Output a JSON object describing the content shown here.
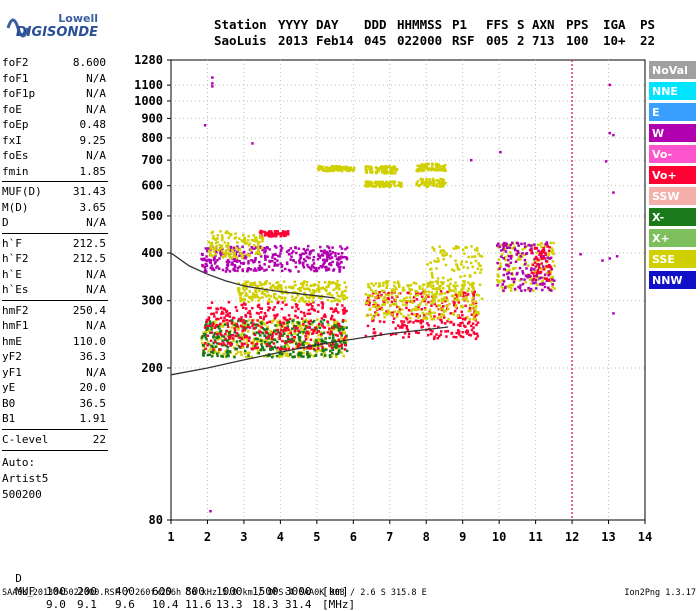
{
  "logo": {
    "line1": "Lowell",
    "line2": "DIGISONDE"
  },
  "header": {
    "row1": [
      "Station",
      "YYYY",
      "DAY",
      "DDD",
      "HHMMSS",
      "P1",
      "FFS",
      "S",
      "AXN",
      "PPS",
      "IGA",
      "PS"
    ],
    "row2": [
      "SaoLuis",
      "2013",
      "Feb14",
      "045",
      "022000",
      "RSF",
      "005",
      "2",
      "713",
      "100",
      "10+",
      "22"
    ]
  },
  "params": [
    {
      "k": "foF2",
      "v": "8.600"
    },
    {
      "k": "foF1",
      "v": "N/A"
    },
    {
      "k": "foF1p",
      "v": "N/A"
    },
    {
      "k": "foE",
      "v": "N/A"
    },
    {
      "k": "foEp",
      "v": "0.48"
    },
    {
      "k": "fxI",
      "v": "9.25"
    },
    {
      "k": "foEs",
      "v": "N/A"
    },
    {
      "k": "fmin",
      "v": "1.85"
    },
    {
      "k": "MUF(D)",
      "v": "31.43"
    },
    {
      "k": "M(D)",
      "v": "3.65"
    },
    {
      "k": "D",
      "v": "N/A"
    },
    {
      "k": "h`F",
      "v": "212.5"
    },
    {
      "k": "h`F2",
      "v": "212.5"
    },
    {
      "k": "h`E",
      "v": "N/A"
    },
    {
      "k": "h`Es",
      "v": "N/A"
    },
    {
      "k": "hmF2",
      "v": "250.4"
    },
    {
      "k": "hmF1",
      "v": "N/A"
    },
    {
      "k": "hmE",
      "v": "110.0"
    },
    {
      "k": "yF2",
      "v": "36.3"
    },
    {
      "k": "yF1",
      "v": "N/A"
    },
    {
      "k": "yE",
      "v": "20.0"
    },
    {
      "k": "B0",
      "v": "36.5"
    },
    {
      "k": "B1",
      "v": "1.91"
    },
    {
      "k": "C-level",
      "v": "22"
    }
  ],
  "auto": [
    "Auto:",
    "Artist5",
    "500200"
  ],
  "legend": [
    {
      "label": "NoVal",
      "color": "#a0a0a0"
    },
    {
      "label": "NNE",
      "color": "#00e5ff"
    },
    {
      "label": "E",
      "color": "#3aa0ff"
    },
    {
      "label": "W",
      "color": "#b000b0"
    },
    {
      "label": "Vo-",
      "color": "#ff55cc"
    },
    {
      "label": "Vo+",
      "color": "#ff0033"
    },
    {
      "label": "SSW",
      "color": "#f4b0a8"
    },
    {
      "label": "X-",
      "color": "#1a7a1a"
    },
    {
      "label": "X+",
      "color": "#7cbf5c"
    },
    {
      "label": "SSE",
      "color": "#d0d000"
    },
    {
      "label": "NNW",
      "color": "#1010c8"
    }
  ],
  "chart_data": {
    "type": "scatter",
    "xlim": [
      1,
      14
    ],
    "ylim": [
      80,
      1280
    ],
    "y_scale": "log",
    "xticks": [
      1,
      2,
      3,
      4,
      5,
      6,
      7,
      8,
      9,
      10,
      11,
      12,
      13,
      14
    ],
    "yticks": [
      80,
      200,
      300,
      400,
      500,
      600,
      700,
      800,
      900,
      1000,
      1100,
      1280
    ],
    "marker_line_x": 12,
    "ionogram_trace": [
      [
        1,
        192
      ],
      [
        2,
        200
      ],
      [
        3,
        210
      ],
      [
        4,
        220
      ],
      [
        5,
        230
      ],
      [
        6,
        238
      ],
      [
        7,
        246
      ],
      [
        8,
        252
      ],
      [
        8.6,
        256
      ]
    ],
    "secondary_trace": [
      [
        1,
        400
      ],
      [
        1.5,
        370
      ],
      [
        2,
        352
      ],
      [
        2.5,
        338
      ],
      [
        3,
        328
      ],
      [
        3.5,
        322
      ],
      [
        4,
        317
      ],
      [
        4.5,
        313
      ],
      [
        5,
        309
      ],
      [
        5.5,
        305
      ]
    ],
    "clusters": [
      {
        "x": [
          1.8,
          5.8
        ],
        "y": [
          215,
          270
        ],
        "color": "#d0d000"
      },
      {
        "x": [
          1.8,
          5.8
        ],
        "y": [
          215,
          270
        ],
        "color": "#1a7a1a"
      },
      {
        "x": [
          1.9,
          5.8
        ],
        "y": [
          225,
          300
        ],
        "color": "#ff0033"
      },
      {
        "x": [
          6.3,
          9.4
        ],
        "y": [
          240,
          320
        ],
        "color": "#ff0033"
      },
      {
        "x": [
          6.3,
          9.4
        ],
        "y": [
          270,
          340
        ],
        "color": "#d0d000"
      },
      {
        "x": [
          8,
          9.5
        ],
        "y": [
          300,
          420
        ],
        "color": "#d0d000"
      },
      {
        "x": [
          2.8,
          5.8
        ],
        "y": [
          300,
          340
        ],
        "color": "#d0d000"
      },
      {
        "x": [
          1.8,
          5.8
        ],
        "y": [
          360,
          420
        ],
        "color": "#b000b0"
      },
      {
        "x": [
          3.4,
          4.2
        ],
        "y": [
          445,
          460
        ],
        "color": "#ff0033"
      },
      {
        "x": [
          5,
          6
        ],
        "y": [
          660,
          680
        ],
        "color": "#d0d000"
      },
      {
        "x": [
          6.3,
          7.2
        ],
        "y": [
          650,
          680
        ],
        "color": "#d0d000"
      },
      {
        "x": [
          7.7,
          8.5
        ],
        "y": [
          660,
          690
        ],
        "color": "#d0d000"
      },
      {
        "x": [
          6.3,
          7.3
        ],
        "y": [
          600,
          620
        ],
        "color": "#d0d000"
      },
      {
        "x": [
          7.7,
          8.5
        ],
        "y": [
          600,
          630
        ],
        "color": "#d0d000"
      },
      {
        "x": [
          9.9,
          11.5
        ],
        "y": [
          320,
          430
        ],
        "color": "#d0d000"
      },
      {
        "x": [
          9.9,
          11.5
        ],
        "y": [
          320,
          430
        ],
        "color": "#b000b0"
      },
      {
        "x": [
          10.8,
          11.4
        ],
        "y": [
          340,
          420
        ],
        "color": "#ff0033"
      },
      {
        "x": [
          2,
          3.5
        ],
        "y": [
          390,
          460
        ],
        "color": "#d0d000"
      }
    ],
    "sparse_points": [
      [
        2.1,
        1100
      ],
      [
        2.1,
        1120
      ],
      [
        2.1,
        1160
      ],
      [
        2.05,
        85
      ],
      [
        1.9,
        870
      ],
      [
        3.2,
        780
      ],
      [
        13,
        1110
      ],
      [
        13,
        830
      ],
      [
        13.1,
        820
      ],
      [
        12.9,
        700
      ],
      [
        13.1,
        580
      ],
      [
        13.1,
        280
      ],
      [
        10,
        740
      ],
      [
        9.2,
        705
      ],
      [
        12.2,
        400
      ],
      [
        12.8,
        385
      ],
      [
        13,
        390
      ],
      [
        13.2,
        395
      ]
    ]
  },
  "footer": {
    "d_label": "D",
    "d_values": [
      "100",
      "200",
      "400",
      "600",
      "800",
      "1000",
      "1500",
      "3000",
      "[km]"
    ],
    "muf_label": "MUF",
    "muf_values": [
      "9.0",
      "9.1",
      "9.6",
      "10.4",
      "11.6",
      "13.3",
      "18.3",
      "31.4",
      "[MHz]"
    ],
    "info": "SAA0K_2013045022000.RSF / 260fx256h 50 kHz 5.0 km / DPS-4 SAA0K 903 / 2.6 S 315.8 E",
    "version": "Ion2Png 1.3.17"
  }
}
